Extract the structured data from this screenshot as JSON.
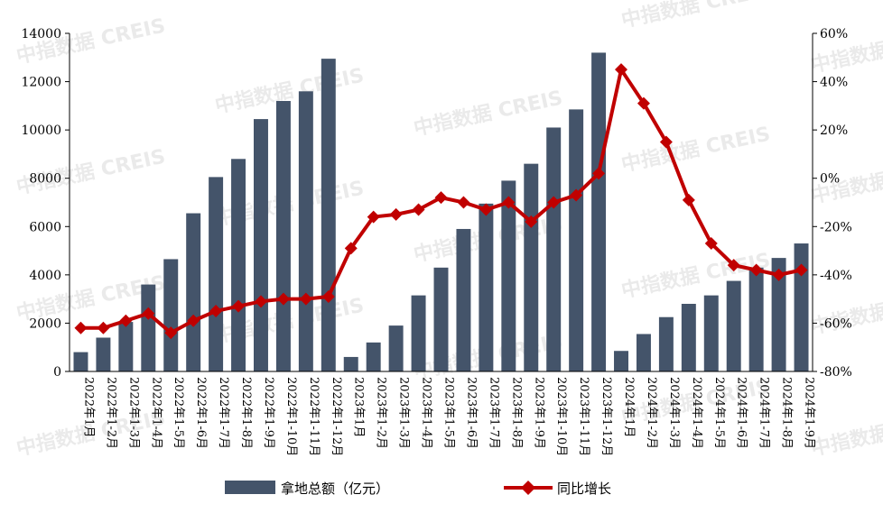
{
  "watermark": "中指数据 CREIS",
  "chart_data": {
    "type": "bar",
    "categories": [
      "2022年1月",
      "2022年1-2月",
      "2022年1-3月",
      "2022年1-4月",
      "2022年1-5月",
      "2022年1-6月",
      "2022年1-7月",
      "2022年1-8月",
      "2022年1-9月",
      "2022年1-10月",
      "2022年1-11月",
      "2022年1-12月",
      "2023年1月",
      "2023年1-2月",
      "2023年1-3月",
      "2023年1-4月",
      "2023年1-5月",
      "2023年1-6月",
      "2023年1-7月",
      "2023年1-8月",
      "2023年1-9月",
      "2023年1-10月",
      "2023年1-11月",
      "2023年1-12月",
      "2024年1月",
      "2024年1-2月",
      "2024年1-3月",
      "2024年1-4月",
      "2024年1-5月",
      "2024年1-6月",
      "2024年1-7月",
      "2024年1-8月",
      "2024年1-9月"
    ],
    "series": [
      {
        "name": "拿地总额（亿元）",
        "type": "bar",
        "axis": "left",
        "color": "#44546a",
        "values": [
          800,
          1400,
          2050,
          3600,
          4650,
          6550,
          8050,
          8800,
          10450,
          11200,
          11600,
          12950,
          600,
          1200,
          1900,
          3150,
          4300,
          5900,
          6950,
          7900,
          8600,
          10100,
          10850,
          13200,
          850,
          1550,
          2250,
          2800,
          3150,
          3750,
          4300,
          4700,
          5300
        ]
      },
      {
        "name": "同比增长",
        "type": "line",
        "axis": "right",
        "color": "#c00000",
        "values": [
          -62,
          -62,
          -59,
          -56,
          -64,
          -59,
          -55,
          -53,
          -51,
          -50,
          -50,
          -49,
          -29,
          -16,
          -15,
          -13,
          -8,
          -10,
          -13,
          -10,
          -18,
          -10,
          -7,
          2,
          45,
          31,
          15,
          -9,
          -27,
          -36,
          -38,
          -40,
          -38
        ]
      }
    ],
    "y_left": {
      "min": 0,
      "max": 14000,
      "ticks": [
        "0",
        "2000",
        "4000",
        "6000",
        "8000",
        "10000",
        "12000",
        "14000"
      ]
    },
    "y_right": {
      "min": -80,
      "max": 60,
      "ticks": [
        "-80%",
        "-60%",
        "-40%",
        "-20%",
        "0%",
        "20%",
        "40%",
        "60%"
      ]
    },
    "title": "",
    "xlabel": "",
    "ylabel": "",
    "grid": false,
    "legend_position": "bottom-center"
  }
}
